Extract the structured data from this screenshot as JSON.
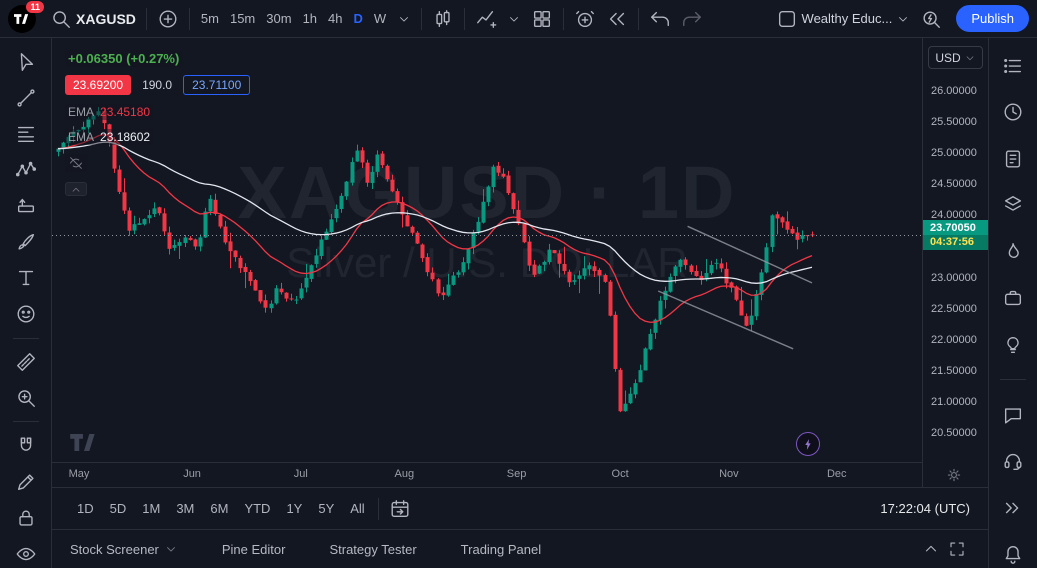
{
  "colors": {
    "bg": "#131722",
    "panel_border": "#2a2e39",
    "accent_blue": "#2962ff",
    "up_green": "#089981",
    "down_red": "#f23645",
    "change_green": "#4caf50",
    "text_primary": "#d1d4dc",
    "text_secondary": "#787b86",
    "channel_gray": "#9598a1",
    "countdown_text": "#ffe24d"
  },
  "header": {
    "notification_badge": "11",
    "symbol": "XAGUSD",
    "intervals": [
      {
        "label": "5m"
      },
      {
        "label": "15m"
      },
      {
        "label": "30m"
      },
      {
        "label": "1h"
      },
      {
        "label": "4h"
      },
      {
        "label": "D",
        "active": true
      },
      {
        "label": "W"
      }
    ],
    "layout_name": "Wealthy Educ...",
    "publish_label": "Publish"
  },
  "legend": {
    "change_text": "+0.06350 (+0.27%)",
    "sell_price": "23.69200",
    "spread": "190.0",
    "buy_price": "23.71100",
    "indicators": [
      {
        "label": "EMA",
        "value": "23.45180",
        "color": "#f23645"
      },
      {
        "label": "EMA",
        "value": "23.18602",
        "color": "#eceff4"
      }
    ]
  },
  "watermark": {
    "line1": "XAGUSD · 1D",
    "line2": "Silver / U.S. DOLLAR"
  },
  "price_axis": {
    "currency": "USD",
    "ticks": [
      {
        "text": "26.00000",
        "price": 26.0
      },
      {
        "text": "25.50000",
        "price": 25.5
      },
      {
        "text": "25.00000",
        "price": 25.0
      },
      {
        "text": "24.50000",
        "price": 24.5
      },
      {
        "text": "24.00000",
        "price": 24.0
      },
      {
        "text": "23.00000",
        "price": 23.0
      },
      {
        "text": "22.50000",
        "price": 22.5
      },
      {
        "text": "22.00000",
        "price": 22.0
      },
      {
        "text": "21.50000",
        "price": 21.5
      },
      {
        "text": "21.00000",
        "price": 21.0
      },
      {
        "text": "20.50000",
        "price": 20.5
      }
    ],
    "last_price": "23.70050",
    "last_price_value": 23.7005,
    "countdown": "04:37:56"
  },
  "time_axis": {
    "months": [
      {
        "label": "May",
        "x": 0.031
      },
      {
        "label": "Jun",
        "x": 0.161
      },
      {
        "label": "Jul",
        "x": 0.286
      },
      {
        "label": "Aug",
        "x": 0.405
      },
      {
        "label": "Sep",
        "x": 0.534
      },
      {
        "label": "Oct",
        "x": 0.653
      },
      {
        "label": "Nov",
        "x": 0.778
      },
      {
        "label": "Dec",
        "x": 0.902
      }
    ]
  },
  "range_toolbar": {
    "ranges": [
      "1D",
      "5D",
      "1M",
      "3M",
      "6M",
      "YTD",
      "1Y",
      "5Y",
      "All"
    ],
    "utc_clock": "17:22:04 (UTC)"
  },
  "status_bar": {
    "items": [
      "Stock Screener",
      "Pine Editor",
      "Strategy Tester",
      "Trading Panel"
    ]
  },
  "left_toolbar": [
    "cursor",
    "trend-line",
    "fib-retracement",
    "xabcd-pattern",
    "long-position",
    "brush",
    "text",
    "emoji",
    "measure",
    "zoom",
    "magnet",
    "edit",
    "lock",
    "eye"
  ],
  "right_sidebar": [
    "watchlist",
    "alerts-clock",
    "notes",
    "object-tree",
    "hotlists-flame",
    "briefcase",
    "idea-bulb",
    "chat",
    "headset",
    "streams",
    "notification-bell"
  ],
  "chart_data": {
    "type": "candlestick",
    "symbol": "XAGUSD",
    "interval": "1D",
    "visible_price_range": [
      20.5,
      26.0
    ],
    "num_candles": 150,
    "last_price": 23.7005,
    "path_anchors": [
      [
        0.0,
        25.05
      ],
      [
        0.03,
        25.45
      ],
      [
        0.055,
        25.7
      ],
      [
        0.065,
        25.3
      ],
      [
        0.078,
        24.45
      ],
      [
        0.095,
        23.75
      ],
      [
        0.11,
        23.95
      ],
      [
        0.13,
        24.15
      ],
      [
        0.15,
        23.45
      ],
      [
        0.165,
        23.65
      ],
      [
        0.185,
        23.55
      ],
      [
        0.2,
        24.3
      ],
      [
        0.21,
        24.0
      ],
      [
        0.225,
        23.45
      ],
      [
        0.25,
        23.1
      ],
      [
        0.274,
        22.45
      ],
      [
        0.29,
        22.85
      ],
      [
        0.313,
        22.6
      ],
      [
        0.33,
        23.05
      ],
      [
        0.355,
        23.75
      ],
      [
        0.375,
        24.3
      ],
      [
        0.397,
        25.1
      ],
      [
        0.41,
        24.55
      ],
      [
        0.423,
        24.95
      ],
      [
        0.448,
        24.3
      ],
      [
        0.47,
        23.7
      ],
      [
        0.495,
        23.0
      ],
      [
        0.507,
        22.65
      ],
      [
        0.533,
        23.2
      ],
      [
        0.555,
        23.85
      ],
      [
        0.578,
        24.85
      ],
      [
        0.594,
        24.55
      ],
      [
        0.61,
        23.9
      ],
      [
        0.63,
        23.0
      ],
      [
        0.645,
        23.3
      ],
      [
        0.656,
        23.5
      ],
      [
        0.67,
        23.1
      ],
      [
        0.682,
        22.9
      ],
      [
        0.7,
        23.25
      ],
      [
        0.715,
        23.15
      ],
      [
        0.727,
        22.85
      ],
      [
        0.736,
        21.9
      ],
      [
        0.744,
        20.8
      ],
      [
        0.755,
        21.1
      ],
      [
        0.772,
        21.55
      ],
      [
        0.785,
        22.1
      ],
      [
        0.798,
        22.6
      ],
      [
        0.812,
        23.0
      ],
      [
        0.824,
        23.3
      ],
      [
        0.84,
        23.15
      ],
      [
        0.855,
        22.95
      ],
      [
        0.868,
        23.3
      ],
      [
        0.88,
        23.1
      ],
      [
        0.895,
        22.75
      ],
      [
        0.915,
        22.15
      ],
      [
        0.931,
        22.95
      ],
      [
        0.947,
        24.05
      ],
      [
        0.96,
        23.9
      ],
      [
        0.975,
        23.65
      ],
      [
        1.0,
        23.7
      ]
    ],
    "emas": [
      {
        "period": 21,
        "color": "#f23645"
      },
      {
        "period": 55,
        "color": "#e3e6ee"
      }
    ],
    "channel": {
      "upper": [
        [
          0.835,
          23.84
        ],
        [
          1.0,
          22.93
        ]
      ],
      "lower": [
        [
          0.796,
          22.8
        ],
        [
          0.975,
          21.87
        ]
      ]
    }
  }
}
